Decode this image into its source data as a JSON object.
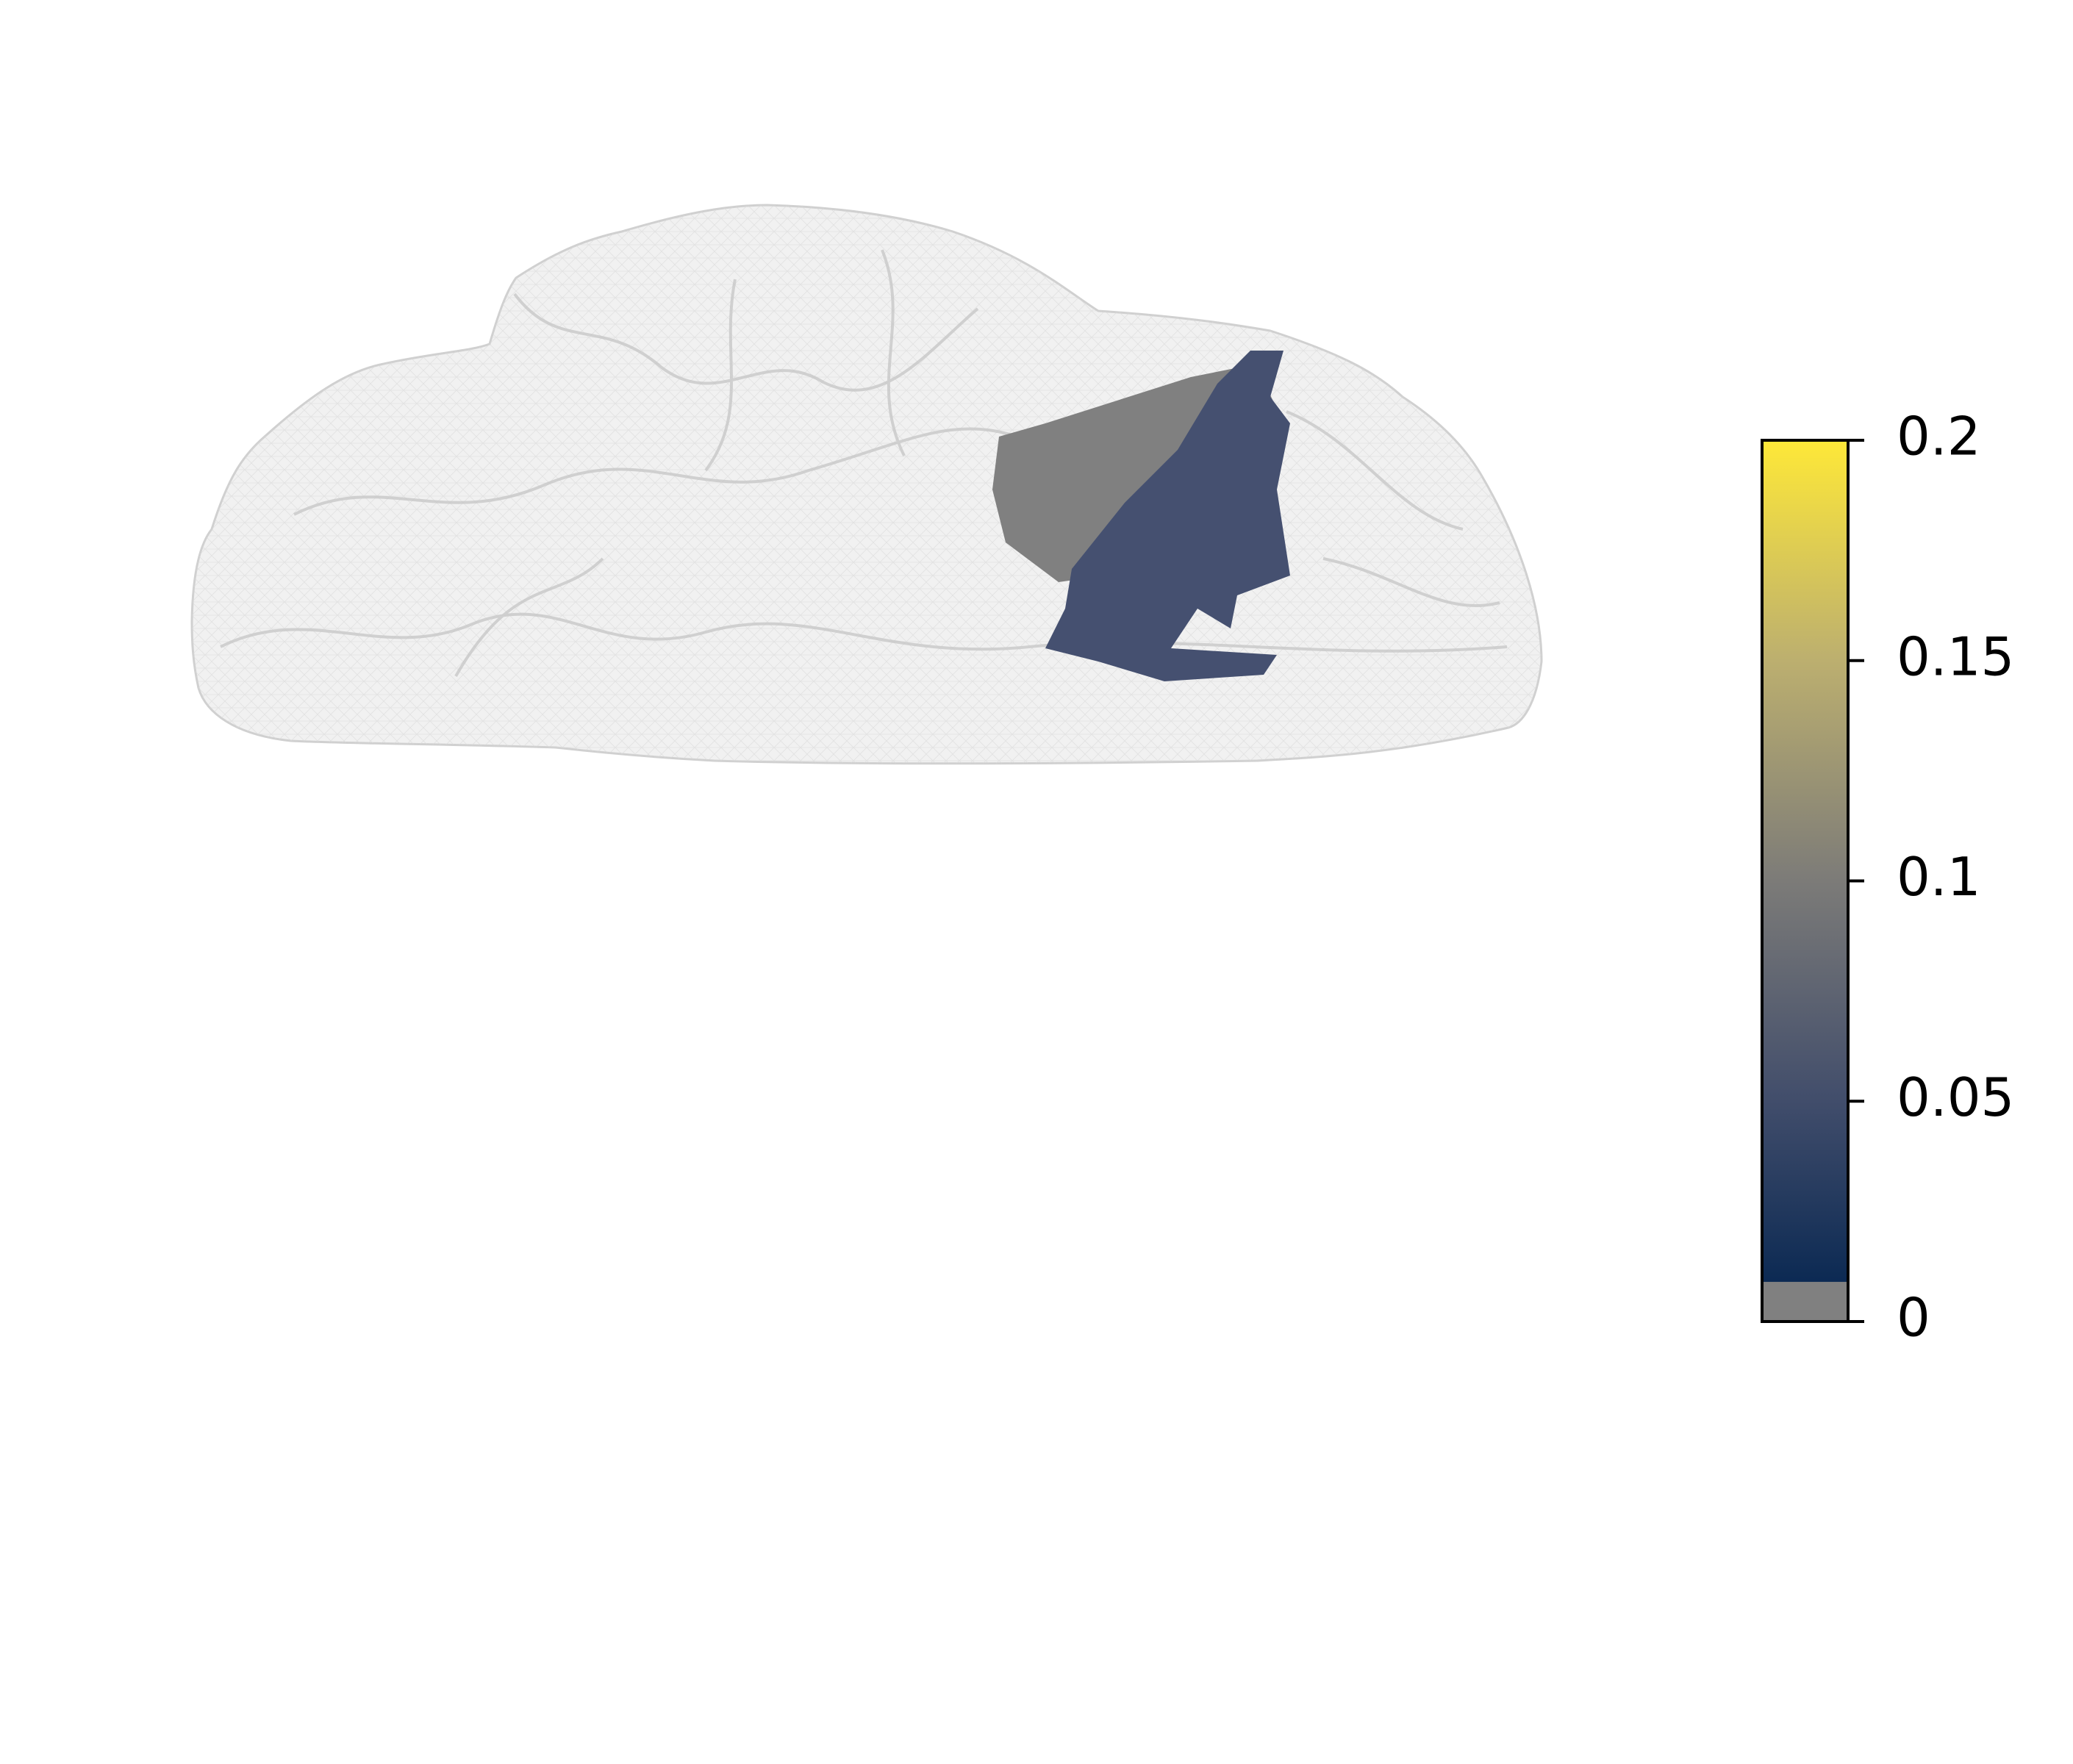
{
  "chart_data": {
    "type": "colorbar",
    "ylim": [
      0,
      0.2
    ],
    "yticks": [
      0,
      0.05,
      0.1,
      0.15,
      0.2
    ],
    "threshold": 0.009,
    "below_color": "#808080",
    "colormap": [
      "#00224e",
      "#414d6b",
      "#7c7b78",
      "#bcaf6f",
      "#fee838"
    ]
  }
}
